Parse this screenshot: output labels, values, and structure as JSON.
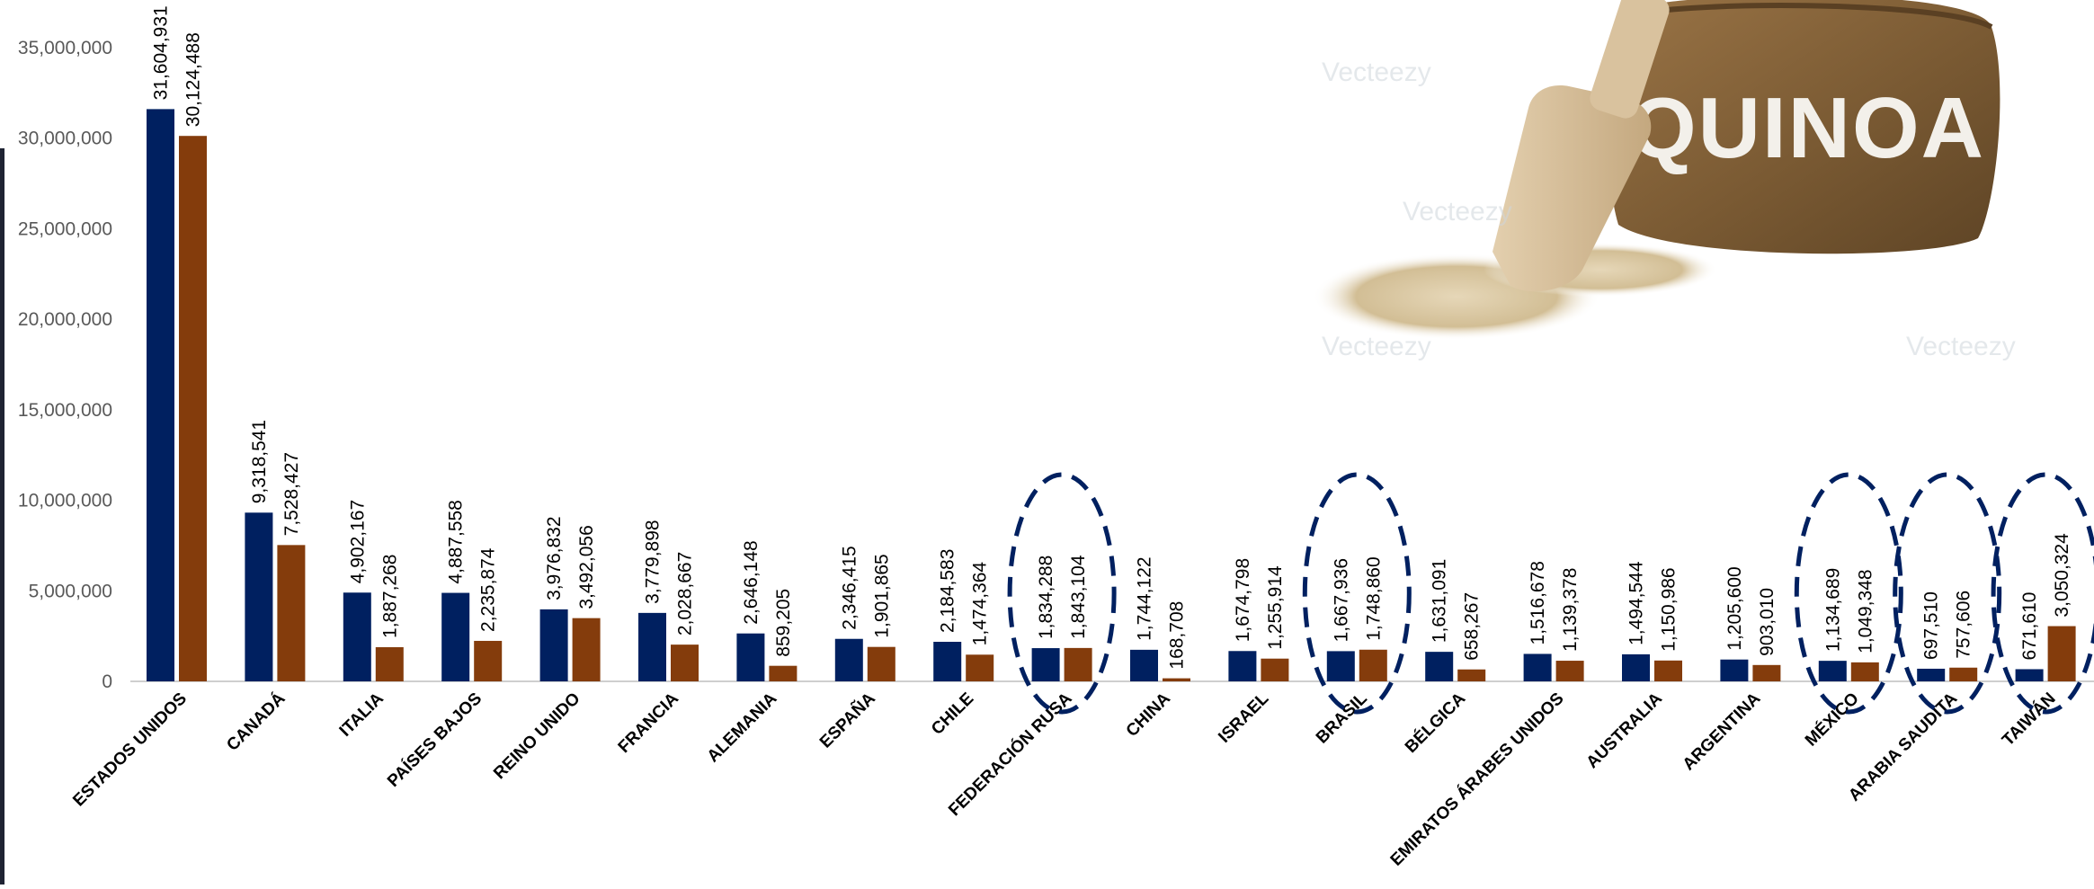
{
  "chart_data": {
    "type": "bar",
    "title": "",
    "xlabel": "",
    "ylabel": "",
    "ylim": [
      0,
      35000000
    ],
    "yticks": [
      "0",
      "5,000,000",
      "10,000,000",
      "15,000,000",
      "20,000,000",
      "25,000,000",
      "30,000,000",
      "35,000,000"
    ],
    "ytick_values": [
      0,
      5000000,
      10000000,
      15000000,
      20000000,
      25000000,
      30000000,
      35000000
    ],
    "grid": false,
    "legend": "none",
    "categories": [
      "ESTADOS UNIDOS",
      "CANADÁ",
      "ITALIA",
      "PAÍSES BAJOS",
      "REINO UNIDO",
      "FRANCIA",
      "ALEMANIA",
      "ESPAÑA",
      "CHILE",
      "FEDERACIÓN RUSA",
      "CHINA",
      "ISRAEL",
      "BRASIL",
      "BÉLGICA",
      "EMIRATOS ÁRABES UNIDOS",
      "AUSTRALIA",
      "ARGENTINA",
      "MÉXICO",
      "ARABIA SAUDITA",
      "TAIWÁN"
    ],
    "series": [
      {
        "color": "#002060",
        "values": [
          31604931,
          9318541,
          4902167,
          4887558,
          3976832,
          3779898,
          2646148,
          2346415,
          2184583,
          1834288,
          1744122,
          1674798,
          1667936,
          1631091,
          1516678,
          1494544,
          1205600,
          1134689,
          697510,
          671610
        ],
        "labels": [
          "31,604,931",
          "9,318,541",
          "4,902,167",
          "4,887,558",
          "3,976,832",
          "3,779,898",
          "2,646,148",
          "2,346,415",
          "2,184,583",
          "1,834,288",
          "1,744,122",
          "1,674,798",
          "1,667,936",
          "1,631,091",
          "1,516,678",
          "1,494,544",
          "1,205,600",
          "1,134,689",
          "697,510",
          "671,610"
        ]
      },
      {
        "color": "#843C0C",
        "values": [
          30124488,
          7528427,
          1887268,
          2235874,
          3492056,
          2028667,
          859205,
          1901865,
          1474364,
          1843104,
          168708,
          1255914,
          1748860,
          658267,
          1139378,
          1150986,
          903010,
          1049348,
          757606,
          3050324
        ],
        "labels": [
          "30,124,488",
          "7,528,427",
          "1,887,268",
          "2,235,874",
          "3,492,056",
          "2,028,667",
          "859,205",
          "1,901,865",
          "1,474,364",
          "1,843,104",
          "168,708",
          "1,255,914",
          "1,748,860",
          "658,267",
          "1,139,378",
          "1,150,986",
          "903,010",
          "1,049,348",
          "757,606",
          "3,050,324"
        ]
      }
    ],
    "highlighted_categories": [
      "FEDERACIÓN RUSA",
      "BRASIL",
      "MÉXICO",
      "ARABIA SAUDITA",
      "TAIWÁN"
    ],
    "highlight_style": "dashed-ellipse",
    "highlight_color": "#002060"
  },
  "illustration": {
    "sack_text": "QUINOA",
    "watermark": "Vecteezy",
    "icon": "quinoa-sack-icon"
  }
}
